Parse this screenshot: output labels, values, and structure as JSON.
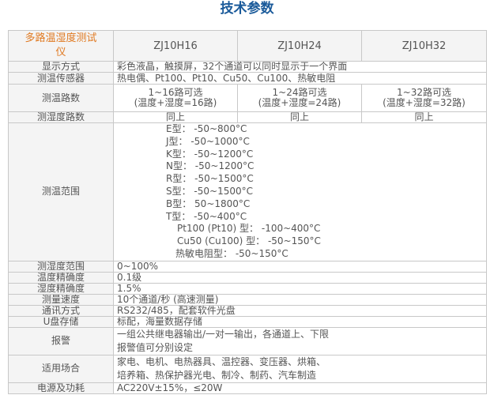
{
  "title": "技术参数",
  "header": {
    "product": "多路温湿度测试仪",
    "models": [
      "ZJ10H16",
      "ZJ10H24",
      "ZJ10H32"
    ]
  },
  "rows": {
    "display": {
      "label": "显示方式",
      "value": "彩色液晶，触摸屏，32个通道可以同时显示于一个界面"
    },
    "sensor": {
      "label": "测温传感器",
      "value": "热电偶、Pt100、Pt10、Cu50、Cu100、热敏电阻"
    },
    "temp_channels": {
      "label": "测温路数",
      "values": [
        [
          "1~16路可选",
          "(温度+湿度=16路)"
        ],
        [
          "1~24路可选",
          "(温度+湿度=24路)"
        ],
        [
          "1~32路可选",
          "(温度+湿度=32路)"
        ]
      ]
    },
    "humid_channels": {
      "label": "测湿度路数",
      "values": [
        "同上",
        "同上",
        "同上"
      ]
    },
    "temp_range": {
      "label": "测温范围",
      "lines": [
        "E型： -50~800°C",
        "J型： -50~1000°C",
        "K型： -50~1200°C",
        "N型： -50~1200°C",
        "R型： -50~1500°C",
        "S型： -50~1500°C",
        "B型： 50~1800°C",
        "T型： -50~400°C",
        "Pt100 (Pt10) 型： -100~400°C",
        "Cu50 (Cu100) 型： -50~150°C",
        "热敏电阻型： -50~150°C"
      ]
    },
    "humid_range": {
      "label": "测湿度范围",
      "value": "0~100%"
    },
    "temp_accuracy": {
      "label": "温度精确度",
      "value": "0.1级"
    },
    "humid_accuracy": {
      "label": "湿度精确度",
      "value": "1.5%"
    },
    "speed": {
      "label": "测量速度",
      "value": "10个通道/秒 (高速测量)"
    },
    "comm": {
      "label": "通讯方式",
      "value": "RS232/485，配套软件光盘"
    },
    "usb": {
      "label": "U盘存储",
      "value": "标配，海量数据存储"
    },
    "alarm": {
      "label": "报警",
      "lines": [
        "一组公共继电器输出/一对一输出，各通道上、下限",
        "报警值可分别设定"
      ]
    },
    "application": {
      "label": "适用场合",
      "lines": [
        "家电、电机、电热器具、温控器、变压器、烘箱、",
        "培养箱、热保护器光电、制冷、制药、汽车制造"
      ]
    },
    "power": {
      "label": "电源及功耗",
      "value": "AC220V±15%，≤20W"
    }
  }
}
